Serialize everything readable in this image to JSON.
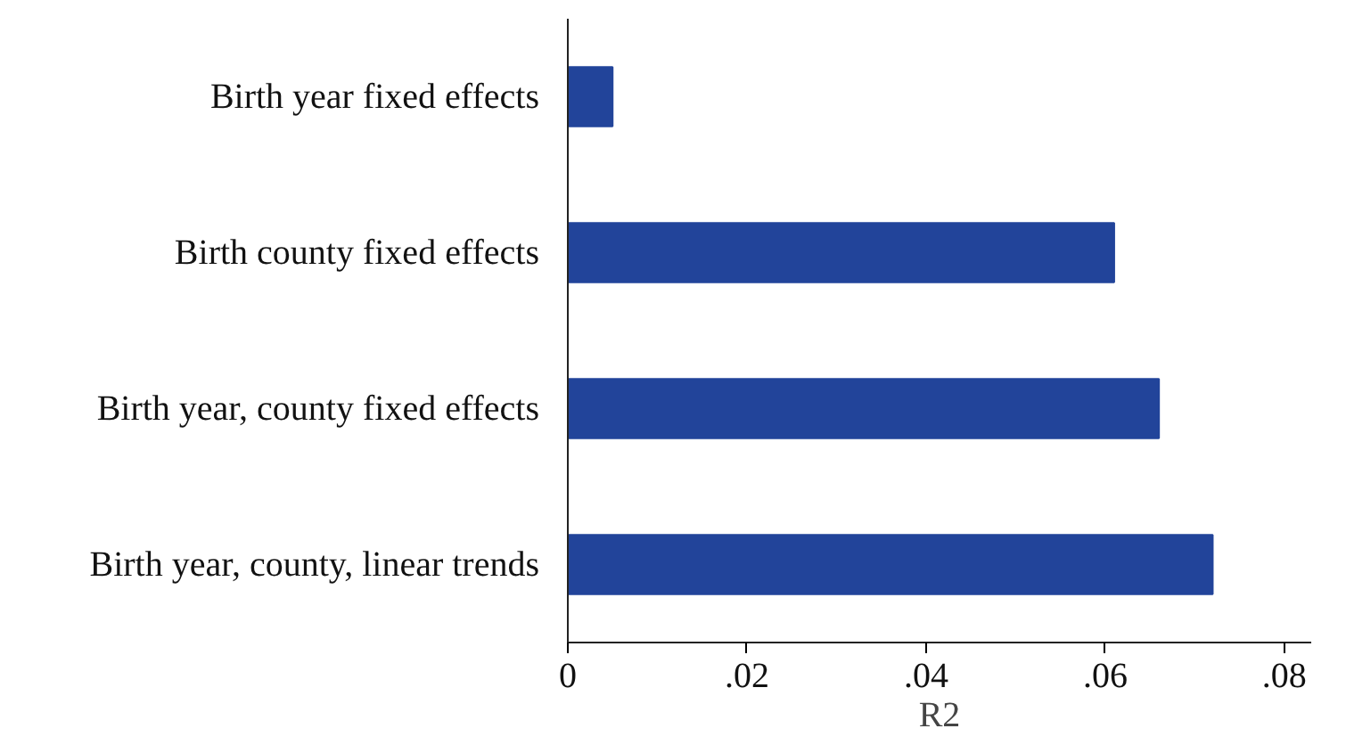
{
  "chart_data": {
    "type": "bar",
    "orientation": "horizontal",
    "xlabel": "R2",
    "categories": [
      "Birth year fixed effects",
      "Birth county fixed effects",
      "Birth year, county fixed effects",
      "Birth year, county, linear trends"
    ],
    "values": [
      0.005,
      0.061,
      0.066,
      0.072
    ],
    "color": "#22449a",
    "xlim": [
      0,
      0.083
    ],
    "xticks": [
      {
        "value": 0,
        "label": "0"
      },
      {
        "value": 0.02,
        "label": ".02"
      },
      {
        "value": 0.04,
        "label": ".04"
      },
      {
        "value": 0.06,
        "label": ".06"
      },
      {
        "value": 0.08,
        "label": ".08"
      }
    ],
    "grid": false
  }
}
